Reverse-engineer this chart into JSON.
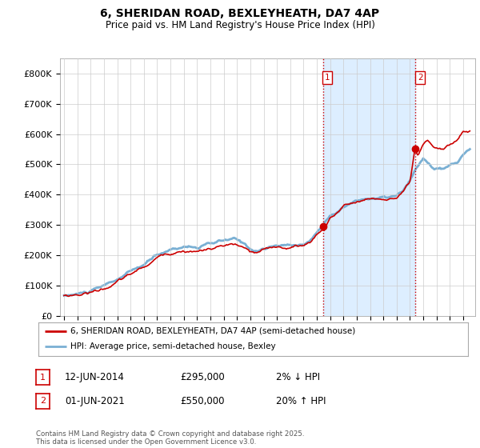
{
  "title": "6, SHERIDAN ROAD, BEXLEYHEATH, DA7 4AP",
  "subtitle": "Price paid vs. HM Land Registry's House Price Index (HPI)",
  "ylim": [
    0,
    850000
  ],
  "yticks": [
    0,
    100000,
    200000,
    300000,
    400000,
    500000,
    600000,
    700000,
    800000
  ],
  "xlim_left": 1994.7,
  "xlim_right": 2025.9,
  "sale1_x": 2014.45,
  "sale1_y": 295000,
  "sale2_x": 2021.42,
  "sale2_y": 550000,
  "legend_line1": "6, SHERIDAN ROAD, BEXLEYHEATH, DA7 4AP (semi-detached house)",
  "legend_line2": "HPI: Average price, semi-detached house, Bexley",
  "table_row1": [
    "1",
    "12-JUN-2014",
    "£295,000",
    "2% ↓ HPI"
  ],
  "table_row2": [
    "2",
    "01-JUN-2021",
    "£550,000",
    "20% ↑ HPI"
  ],
  "footer": "Contains HM Land Registry data © Crown copyright and database right 2025.\nThis data is licensed under the Open Government Licence v3.0.",
  "line_color_red": "#cc0000",
  "line_color_blue": "#7ab0d4",
  "sale_marker_color": "#cc0000",
  "vline_color": "#cc0000",
  "grid_color": "#cccccc",
  "shade_color": "#ddeeff",
  "background_color": "#ffffff"
}
